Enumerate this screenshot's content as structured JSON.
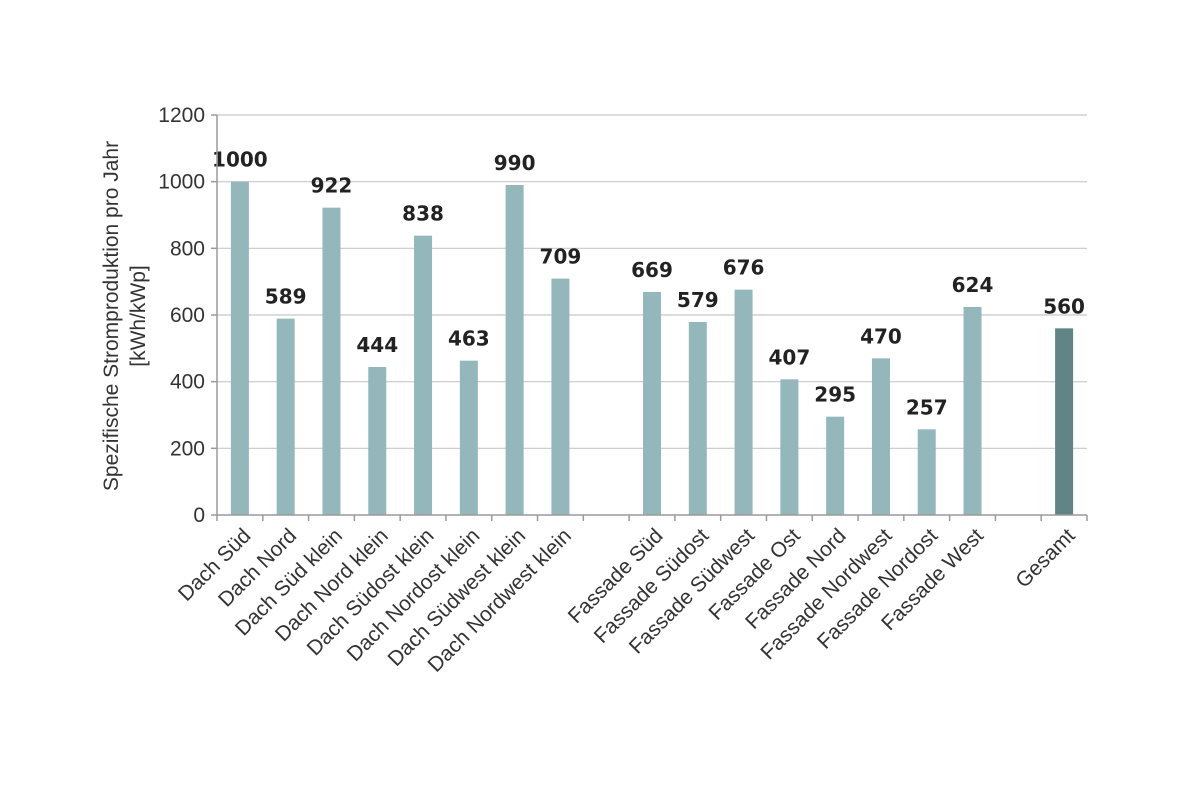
{
  "chart_data": {
    "type": "bar",
    "title": "",
    "xlabel": "",
    "ylabel_line1": "Spezifische Stromproduktion pro Jahr",
    "ylabel_line2": "[kWh/kWp]",
    "ylim": [
      0,
      1200
    ],
    "ytick_step": 200,
    "y_ticks": [
      "0",
      "200",
      "400",
      "600",
      "800",
      "1000",
      "1200"
    ],
    "grid": true,
    "categories": [
      "Dach Süd",
      "Dach Nord",
      "Dach Süd klein",
      "Dach Nord klein",
      "Dach Südost klein",
      "Dach Nordost klein",
      "Dach Südwest klein",
      "Dach Nordwest klein",
      "",
      "Fassade Süd",
      "Fassade Südost",
      "Fassade Südwest",
      "Fassade Ost",
      "Fassade Nord",
      "Fassade Nordwest",
      "Fassade Nordost",
      "Fassade West",
      "",
      "Gesamt"
    ],
    "values": [
      1000,
      589,
      922,
      444,
      838,
      463,
      990,
      709,
      null,
      669,
      579,
      676,
      407,
      295,
      470,
      257,
      624,
      null,
      560
    ],
    "value_labels": [
      "1000",
      "589",
      "922",
      "444",
      "838",
      "463",
      "990",
      "709",
      "",
      "669",
      "579",
      "676",
      "407",
      "295",
      "470",
      "257",
      "624",
      "",
      "560"
    ],
    "colors": {
      "bar": "#93b7bb",
      "total_bar": "#618586",
      "grid": "#c8c8c8",
      "axis": "#9a9a9a"
    }
  }
}
